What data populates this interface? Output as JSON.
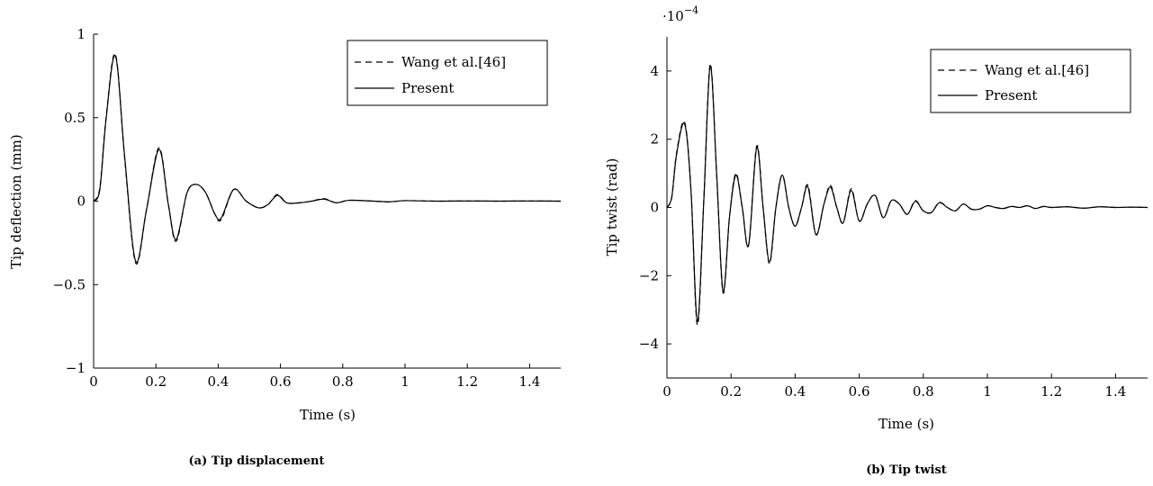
{
  "chart_data": [
    {
      "type": "line",
      "caption": "(a) Tip displacement",
      "xlabel": "Time (s)",
      "ylabel": "Tip deflection (mm)",
      "xlim": [
        0,
        1.5
      ],
      "ylim": [
        -1,
        1
      ],
      "x_ticks": [
        0,
        0.2,
        0.4,
        0.6,
        0.8,
        1,
        1.2,
        1.4
      ],
      "x_tick_labels": [
        "0",
        "0.2",
        "0.4",
        "0.6",
        "0.8",
        "1",
        "1.2",
        "1.4"
      ],
      "y_ticks": [
        -1,
        -0.5,
        0,
        0.5,
        1
      ],
      "y_tick_labels": [
        "−1",
        "−0.5",
        "0",
        "0.5",
        "1"
      ],
      "legend_position": "top-right",
      "grid": false,
      "series": [
        {
          "name": "Wang et al.[46]",
          "style": "dashed",
          "x": [
            0,
            0.02,
            0.04,
            0.07,
            0.1,
            0.135,
            0.17,
            0.21,
            0.24,
            0.265,
            0.3,
            0.33,
            0.36,
            0.39,
            0.41,
            0.45,
            0.49,
            0.53,
            0.56,
            0.59,
            0.62,
            0.66,
            0.7,
            0.74,
            0.78,
            0.82,
            0.9,
            0.95,
            1.0,
            1.1,
            1.2,
            1.3,
            1.4,
            1.5
          ],
          "y": [
            0,
            0.08,
            0.5,
            0.88,
            0.25,
            -0.37,
            -0.05,
            0.32,
            -0.02,
            -0.24,
            0.05,
            0.1,
            0.05,
            -0.08,
            -0.11,
            0.07,
            0.0,
            -0.04,
            -0.02,
            0.04,
            -0.01,
            -0.01,
            0.0,
            0.015,
            -0.01,
            0.005,
            0.0,
            -0.005,
            0.003,
            0.0,
            0.001,
            0.0,
            0.001,
            0.0
          ]
        },
        {
          "name": "Present",
          "style": "solid",
          "x": [
            0,
            0.02,
            0.04,
            0.07,
            0.1,
            0.135,
            0.17,
            0.21,
            0.24,
            0.265,
            0.3,
            0.33,
            0.36,
            0.39,
            0.41,
            0.45,
            0.49,
            0.53,
            0.56,
            0.59,
            0.62,
            0.66,
            0.7,
            0.74,
            0.78,
            0.82,
            0.9,
            0.95,
            1.0,
            1.1,
            1.2,
            1.3,
            1.4,
            1.5
          ],
          "y": [
            0,
            0.07,
            0.49,
            0.87,
            0.26,
            -0.36,
            -0.05,
            0.31,
            -0.02,
            -0.23,
            0.05,
            0.1,
            0.05,
            -0.08,
            -0.1,
            0.07,
            0.0,
            -0.04,
            -0.02,
            0.035,
            -0.01,
            -0.01,
            0.0,
            0.012,
            -0.01,
            0.005,
            0.0,
            -0.004,
            0.003,
            0.0,
            0.001,
            0.0,
            0.001,
            0.0
          ]
        }
      ]
    },
    {
      "type": "line",
      "caption": "(b) Tip twist",
      "xlabel": "Time (s)",
      "ylabel": "Tip twist (rad)",
      "scale_label": "·10",
      "scale_exponent": "−4",
      "xlim": [
        0,
        1.5
      ],
      "ylim": [
        -5,
        5
      ],
      "x_ticks": [
        0,
        0.2,
        0.4,
        0.6,
        0.8,
        1,
        1.2,
        1.4
      ],
      "x_tick_labels": [
        "0",
        "0.2",
        "0.4",
        "0.6",
        "0.8",
        "1",
        "1.2",
        "1.4"
      ],
      "y_ticks": [
        -4,
        -2,
        0,
        2,
        4
      ],
      "y_tick_labels": [
        "−4",
        "−2",
        "0",
        "2",
        "4"
      ],
      "legend_position": "top-right",
      "grid": false,
      "series": [
        {
          "name": "Wang et al.[46]",
          "style": "dashed",
          "x": [
            0,
            0.015,
            0.03,
            0.055,
            0.075,
            0.095,
            0.115,
            0.135,
            0.155,
            0.175,
            0.195,
            0.215,
            0.235,
            0.255,
            0.28,
            0.3,
            0.32,
            0.34,
            0.36,
            0.38,
            0.4,
            0.42,
            0.44,
            0.465,
            0.49,
            0.51,
            0.53,
            0.55,
            0.575,
            0.6,
            0.625,
            0.65,
            0.675,
            0.7,
            0.725,
            0.75,
            0.775,
            0.8,
            0.825,
            0.85,
            0.875,
            0.9,
            0.925,
            0.95,
            0.975,
            1.0,
            1.025,
            1.05,
            1.075,
            1.1,
            1.125,
            1.15,
            1.175,
            1.2,
            1.25,
            1.3,
            1.35,
            1.4,
            1.45,
            1.5
          ],
          "y": [
            0,
            0.3,
            1.6,
            2.5,
            0.5,
            -3.45,
            0.2,
            4.2,
            1.0,
            -2.5,
            -0.3,
            1.0,
            0.0,
            -1.1,
            1.8,
            0.0,
            -1.65,
            0.0,
            0.95,
            0.0,
            -0.55,
            0.0,
            0.65,
            -0.8,
            0.1,
            0.65,
            0.0,
            -0.45,
            0.55,
            -0.4,
            0.1,
            0.35,
            -0.3,
            0.2,
            0.1,
            -0.2,
            0.2,
            -0.1,
            -0.15,
            0.15,
            0.0,
            -0.1,
            0.1,
            -0.05,
            -0.05,
            0.05,
            0.0,
            -0.03,
            0.03,
            0.0,
            0.05,
            -0.03,
            0.03,
            0.0,
            0.02,
            -0.02,
            0.02,
            0.0,
            0.01,
            0.0
          ]
        },
        {
          "name": "Present",
          "style": "solid",
          "x": [
            0,
            0.015,
            0.03,
            0.055,
            0.075,
            0.095,
            0.115,
            0.135,
            0.155,
            0.175,
            0.195,
            0.215,
            0.235,
            0.255,
            0.28,
            0.3,
            0.32,
            0.34,
            0.36,
            0.38,
            0.4,
            0.42,
            0.44,
            0.465,
            0.49,
            0.51,
            0.53,
            0.55,
            0.575,
            0.6,
            0.625,
            0.65,
            0.675,
            0.7,
            0.725,
            0.75,
            0.775,
            0.8,
            0.825,
            0.85,
            0.875,
            0.9,
            0.925,
            0.95,
            0.975,
            1.0,
            1.025,
            1.05,
            1.075,
            1.1,
            1.125,
            1.15,
            1.175,
            1.2,
            1.25,
            1.3,
            1.35,
            1.4,
            1.45,
            1.5
          ],
          "y": [
            0,
            0.3,
            1.55,
            2.45,
            0.5,
            -3.35,
            0.2,
            4.15,
            1.0,
            -2.45,
            -0.3,
            0.95,
            0.0,
            -1.1,
            1.75,
            0.0,
            -1.6,
            0.0,
            0.95,
            0.0,
            -0.55,
            0.0,
            0.6,
            -0.8,
            0.1,
            0.6,
            0.0,
            -0.45,
            0.5,
            -0.4,
            0.1,
            0.35,
            -0.3,
            0.2,
            0.1,
            -0.2,
            0.18,
            -0.1,
            -0.15,
            0.14,
            0.0,
            -0.1,
            0.1,
            -0.05,
            -0.05,
            0.05,
            0.0,
            -0.03,
            0.03,
            0.0,
            0.05,
            -0.03,
            0.03,
            0.0,
            0.02,
            -0.02,
            0.02,
            0.0,
            0.01,
            0.0
          ]
        }
      ]
    }
  ]
}
